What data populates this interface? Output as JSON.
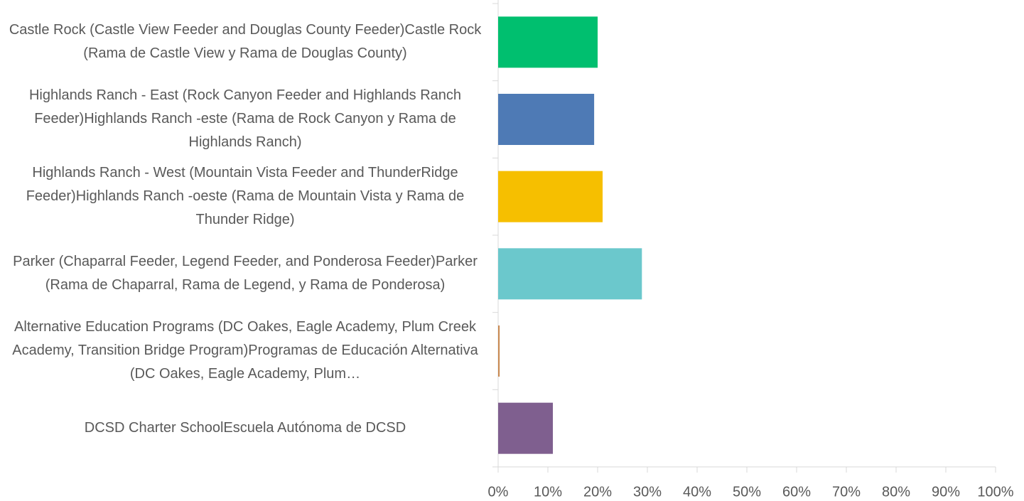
{
  "chart_data": {
    "type": "hbar",
    "categories": [
      "Castle Rock (Castle View Feeder and Douglas County Feeder)Castle Rock (Rama de Castle View y Rama de Douglas County)",
      "Highlands Ranch - East (Rock Canyon Feeder and Highlands Ranch Feeder)Highlands Ranch -este (Rama de Rock Canyon y Rama de Highlands Ranch)",
      "Highlands Ranch - West (Mountain Vista Feeder and ThunderRidge Feeder)Highlands Ranch -oeste (Rama de Mountain Vista y Rama de Thunder Ridge)",
      "Parker (Chaparral Feeder, Legend Feeder, and Ponderosa Feeder)Parker (Rama de Chaparral, Rama de Legend, y Rama de Ponderosa)",
      "Alternative Education Programs (DC Oakes, Eagle Academy, Plum Creek Academy, Transition Bridge Program)Programas de Educación Alternativa (DC Oakes, Eagle Academy, Plum…",
      "DCSD Charter SchoolEscuela Autónoma de DCSD"
    ],
    "values": [
      20,
      19.3,
      21,
      28.9,
      0.3,
      11
    ],
    "colors": [
      "#00bf6f",
      "#4e7ab5",
      "#f6bf00",
      "#6bc8cc",
      "#c98a53",
      "#7f5f8f"
    ],
    "xlim": [
      0,
      100
    ],
    "xticks": [
      {
        "value": 0,
        "label": "0%"
      },
      {
        "value": 10,
        "label": "10%"
      },
      {
        "value": 20,
        "label": "20%"
      },
      {
        "value": 30,
        "label": "30%"
      },
      {
        "value": 40,
        "label": "40%"
      },
      {
        "value": 50,
        "label": "50%"
      },
      {
        "value": 60,
        "label": "60%"
      },
      {
        "value": 70,
        "label": "70%"
      },
      {
        "value": 80,
        "label": "80%"
      },
      {
        "value": 90,
        "label": "90%"
      },
      {
        "value": 100,
        "label": "100%"
      }
    ]
  }
}
